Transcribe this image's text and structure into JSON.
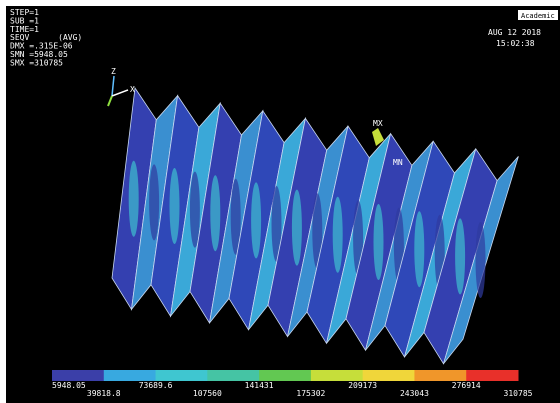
{
  "header": {
    "lines": [
      "STEP=1",
      "SUB =1",
      "TIME=1",
      "SEQV      (AVG)",
      "DMX =.315E-06",
      "SMN =5948.05",
      "SMX =310785"
    ],
    "badge": "Academic",
    "date": "AUG 12 2018",
    "time": "15:02:38"
  },
  "model": {
    "max_label": "MX",
    "min_label": "MN",
    "triad": [
      "Z",
      "X"
    ]
  },
  "legend": {
    "colors": [
      "#3b3fa8",
      "#38a9e0",
      "#3fc6d0",
      "#45c4a4",
      "#62c852",
      "#c6de3a",
      "#f0d63a",
      "#f0962a",
      "#e8302a"
    ],
    "labels": [
      "5948.05",
      "39818.8",
      "73689.6",
      "107560",
      "141431",
      "175302",
      "209173",
      "243043",
      "276914",
      "310785"
    ]
  }
}
